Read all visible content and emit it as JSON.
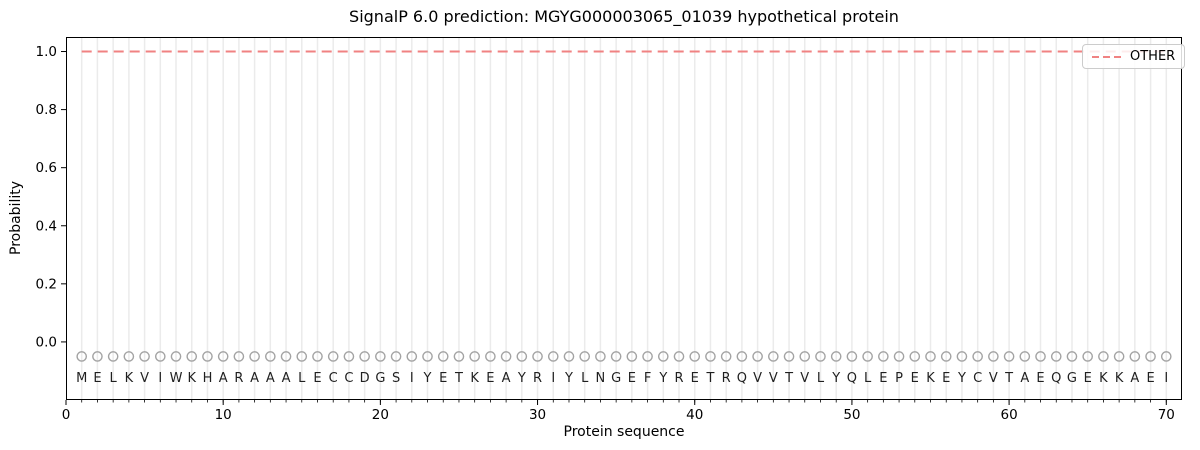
{
  "title": "SignalP 6.0 prediction: MGYG000003065_01039 hypothetical protein",
  "legend": {
    "label": "OTHER",
    "line_color": "#f08282",
    "line_style": "dashed",
    "position": "upper right"
  },
  "chart_data": {
    "type": "line",
    "title": "SignalP 6.0 prediction: MGYG000003065_01039 hypothetical protein",
    "xlabel": "Protein sequence",
    "ylabel": "Probability",
    "xlim": [
      0,
      71
    ],
    "ylim": [
      -0.2,
      1.05
    ],
    "x_ticks": [
      0,
      10,
      20,
      30,
      40,
      50,
      60,
      70
    ],
    "x_tick_labels": [
      "0",
      "10",
      "20",
      "30",
      "40",
      "50",
      "60",
      "70"
    ],
    "y_ticks": [
      0.0,
      0.2,
      0.4,
      0.6,
      0.8,
      1.0
    ],
    "y_tick_labels": [
      "0.0",
      "0.2",
      "0.4",
      "0.6",
      "0.8",
      "1.0"
    ],
    "grid": "vertical gridline at every residue position",
    "legend_position": "upper right",
    "sequence": "MELKVIWKHARAAALECCDGSIYETKEAYRIYLNGEFYRETRQVVTVLYQLEPEKEYCVTAEQGEKKAEI",
    "sequence_length": 70,
    "marker_y": -0.05,
    "letter_y": -0.12,
    "colors": {
      "other_line": "#f08282",
      "residue_marker": "#a3a3a3",
      "gridline": "#ebebeb",
      "text": "#000000"
    },
    "series": [
      {
        "name": "OTHER",
        "style": "dashed",
        "color": "#f08282",
        "x_start": 1,
        "values": [
          1,
          1,
          1,
          1,
          1,
          1,
          1,
          1,
          1,
          1,
          1,
          1,
          1,
          1,
          1,
          1,
          1,
          1,
          1,
          1,
          1,
          1,
          1,
          1,
          1,
          1,
          1,
          1,
          1,
          1,
          1,
          1,
          1,
          1,
          1,
          1,
          1,
          1,
          1,
          1,
          1,
          1,
          1,
          1,
          1,
          1,
          1,
          1,
          1,
          1,
          1,
          1,
          1,
          1,
          1,
          1,
          1,
          1,
          1,
          1,
          1,
          1,
          1,
          1,
          1,
          1,
          1,
          1,
          1,
          1
        ]
      }
    ]
  }
}
